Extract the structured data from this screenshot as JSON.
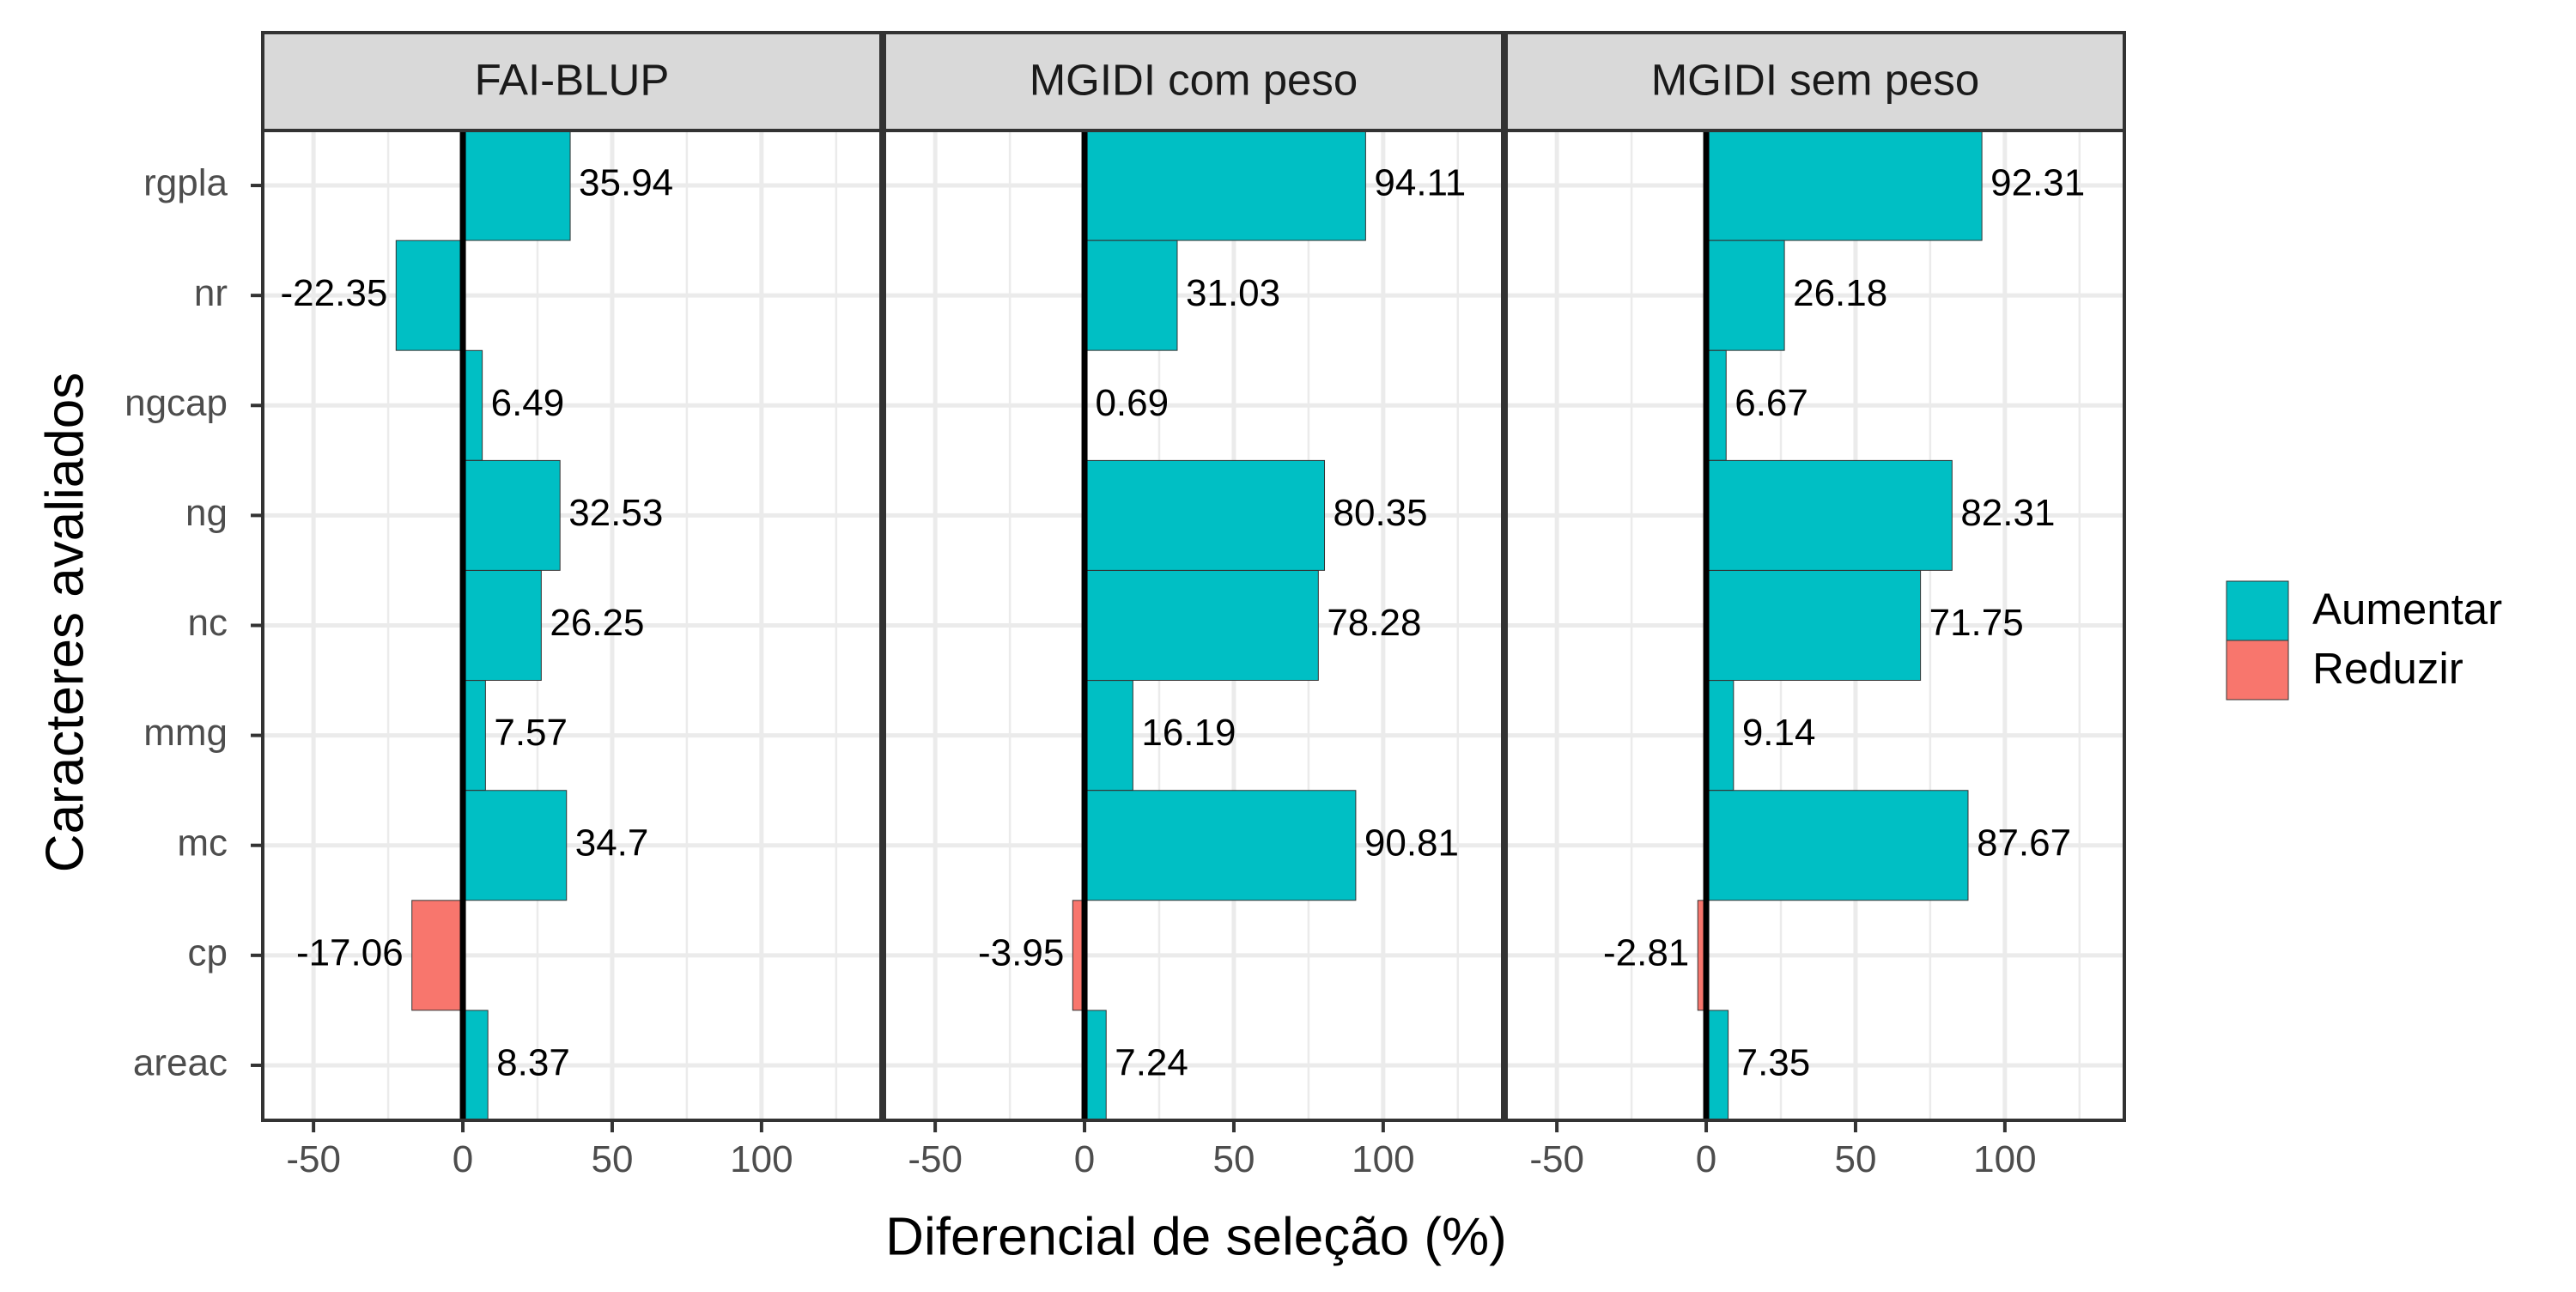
{
  "colors": {
    "aumentar": "#00BFC4",
    "reduzir": "#F8766D",
    "strip_bg": "#D9D9D9",
    "grid": "#EBEBEB",
    "border": "#333333"
  },
  "chart_data": {
    "type": "bar",
    "orientation": "horizontal",
    "xlabel": "Diferencial de seleção (%)",
    "ylabel": "Caracteres avaliados",
    "xlim": [
      -67,
      140
    ],
    "x_ticks": [
      -50,
      0,
      50,
      100
    ],
    "x_tick_labels": [
      "-50",
      "0",
      "50",
      "100"
    ],
    "grid": true,
    "legend": {
      "position": "right",
      "entries": [
        {
          "label": "Aumentar",
          "color": "#00BFC4"
        },
        {
          "label": "Reduzir",
          "color": "#F8766D"
        }
      ]
    },
    "categories": [
      "rgpla",
      "nr",
      "ngcap",
      "ng",
      "nc",
      "mmg",
      "mc",
      "cp",
      "areac"
    ],
    "panels": [
      {
        "title": "FAI-BLUP",
        "values": [
          35.94,
          -22.35,
          6.49,
          32.53,
          26.25,
          7.57,
          34.7,
          -17.06,
          8.37
        ],
        "labels": [
          "35.94",
          "-22.35",
          "6.49",
          "32.53",
          "26.25",
          "7.57",
          "34.7",
          "-17.06",
          "8.37"
        ],
        "groups": [
          "Aumentar",
          "Aumentar",
          "Aumentar",
          "Aumentar",
          "Aumentar",
          "Aumentar",
          "Aumentar",
          "Reduzir",
          "Aumentar"
        ]
      },
      {
        "title": "MGIDI com peso",
        "values": [
          94.11,
          31.03,
          0.69,
          80.35,
          78.28,
          16.19,
          90.81,
          -3.95,
          7.24
        ],
        "labels": [
          "94.11",
          "31.03",
          "0.69",
          "80.35",
          "78.28",
          "16.19",
          "90.81",
          "-3.95",
          "7.24"
        ],
        "groups": [
          "Aumentar",
          "Aumentar",
          "Aumentar",
          "Aumentar",
          "Aumentar",
          "Aumentar",
          "Aumentar",
          "Reduzir",
          "Aumentar"
        ]
      },
      {
        "title": "MGIDI sem peso",
        "values": [
          92.31,
          26.18,
          6.67,
          82.31,
          71.75,
          9.14,
          87.67,
          -2.81,
          7.35
        ],
        "labels": [
          "92.31",
          "26.18",
          "6.67",
          "82.31",
          "71.75",
          "9.14",
          "87.67",
          "-2.81",
          "7.35"
        ],
        "groups": [
          "Aumentar",
          "Aumentar",
          "Aumentar",
          "Aumentar",
          "Aumentar",
          "Aumentar",
          "Aumentar",
          "Reduzir",
          "Aumentar"
        ]
      }
    ]
  }
}
